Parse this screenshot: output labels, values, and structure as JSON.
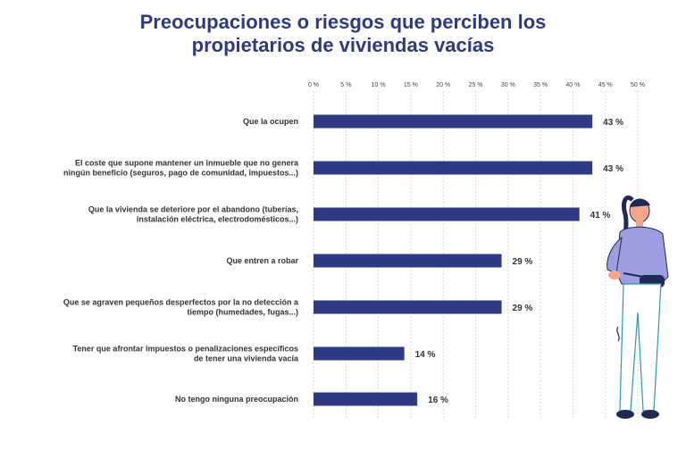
{
  "title_lines": [
    "Preocupaciones o riesgos que perciben los",
    "propietarios de viviendas vacías"
  ],
  "chart_data": {
    "type": "bar",
    "orientation": "horizontal",
    "title": "Preocupaciones o riesgos que perciben los propietarios de viviendas vacías",
    "xlabel": "",
    "ylabel": "",
    "xlim": [
      0,
      50
    ],
    "ticks": [
      "0 %",
      "5 %",
      "10 %",
      "15 %",
      "20 %",
      "25 %",
      "30 %",
      "35 %",
      "40 %",
      "45 %",
      "50 %"
    ],
    "tick_values": [
      0,
      5,
      10,
      15,
      20,
      25,
      30,
      35,
      40,
      45,
      50
    ],
    "grid": true,
    "bar_color": "#2e3a84",
    "categories": [
      [
        "Que la ocupen"
      ],
      [
        "El coste que supone mantener un inmueble que no genera",
        "ningún beneficio (seguros, pago de comunidad, impuestos...)"
      ],
      [
        "Que la vivienda se deteriore por el abandono (tuberías,",
        "instalación eléctrica, electrodomésticos...)"
      ],
      [
        "Que entren a robar"
      ],
      [
        "Que se agraven pequeños desperfectos por la no detección a",
        "tiempo (humedades, fugas...)"
      ],
      [
        "Tener que afrontar impuestos o penalizaciones específicos",
        "de tener una vivienda vacía"
      ],
      [
        "No tengo ninguna preocupación"
      ]
    ],
    "values": [
      43,
      43,
      41,
      29,
      29,
      14,
      16
    ],
    "value_labels": [
      "43 %",
      "43 %",
      "41 %",
      "29 %",
      "29 %",
      "14 %",
      "16 %"
    ]
  },
  "colors": {
    "title": "#2e3a84",
    "bar": "#2e3a84",
    "figure_sweater": "#9b9ee0",
    "figure_skin": "#f5a58c",
    "figure_outline": "#1e2a55"
  }
}
